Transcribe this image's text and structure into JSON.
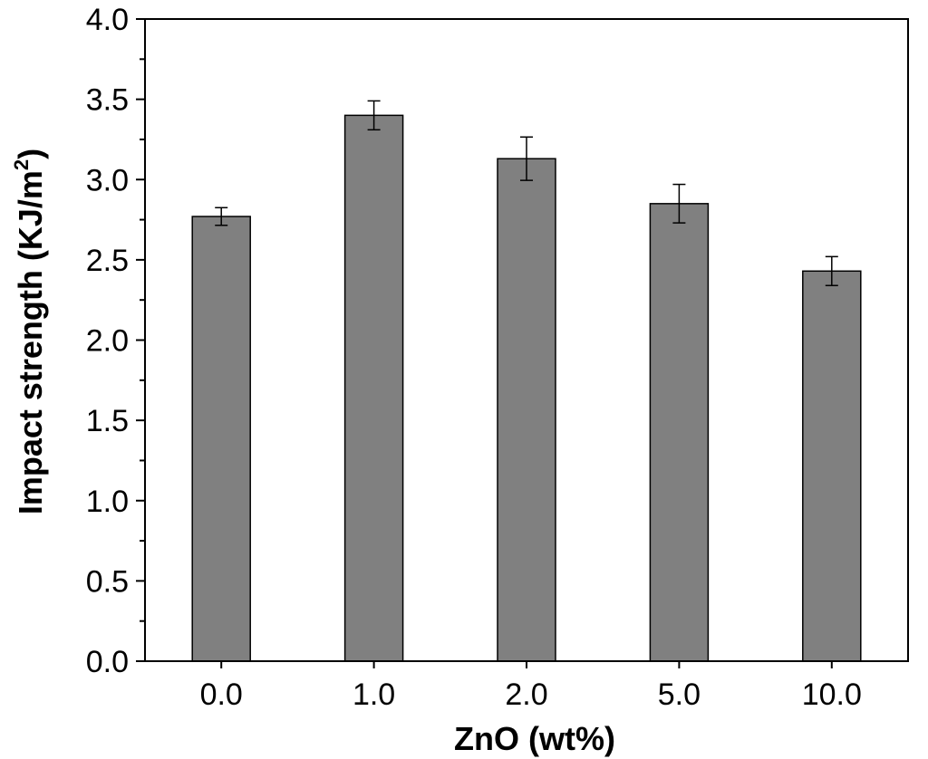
{
  "chart_data": {
    "type": "bar",
    "title": "",
    "xlabel": "ZnO (wt%)",
    "ylabel": {
      "main": "Impact strength (KJ/m",
      "superscript": "2",
      "close": ")"
    },
    "categories": [
      "0.0",
      "1.0",
      "2.0",
      "5.0",
      "10.0"
    ],
    "series": [
      {
        "name": "Impact strength",
        "values": [
          2.77,
          3.4,
          3.13,
          2.85,
          2.43
        ],
        "errors": [
          0.055,
          0.09,
          0.135,
          0.12,
          0.09
        ],
        "color": "#808080"
      }
    ],
    "ylim": [
      0.0,
      4.0
    ],
    "yticks": [
      "0.0",
      "0.5",
      "1.0",
      "1.5",
      "2.0",
      "2.5",
      "3.0",
      "3.5",
      "4.0"
    ],
    "grid": false,
    "legend": "none"
  }
}
